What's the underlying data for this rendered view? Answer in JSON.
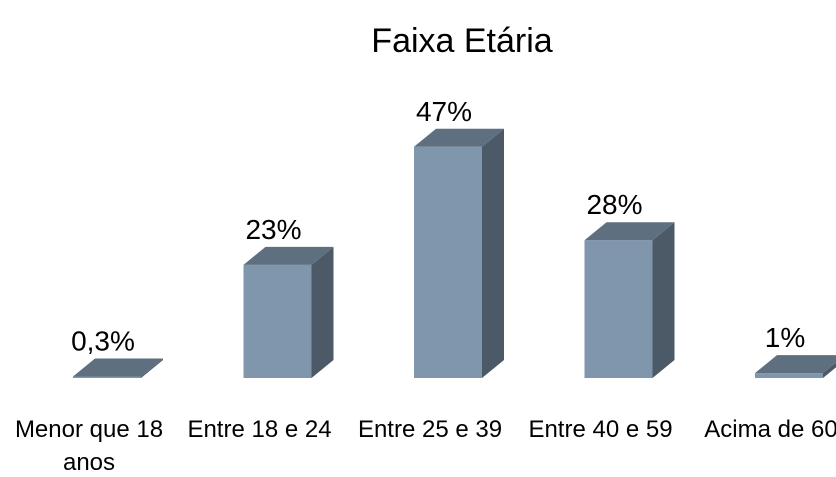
{
  "chart_data": {
    "type": "bar3d",
    "title": "Faixa Etária",
    "categories": [
      "Menor que 18 anos",
      "Entre 18 e 24",
      "Entre 25 e 39",
      "Entre 40 e 59",
      "Acima de 60"
    ],
    "values": [
      0.3,
      23,
      47,
      28,
      1
    ],
    "value_labels": [
      "0,3%",
      "23%",
      "47%",
      "28%",
      "1%"
    ],
    "color": "#7f96ad"
  }
}
